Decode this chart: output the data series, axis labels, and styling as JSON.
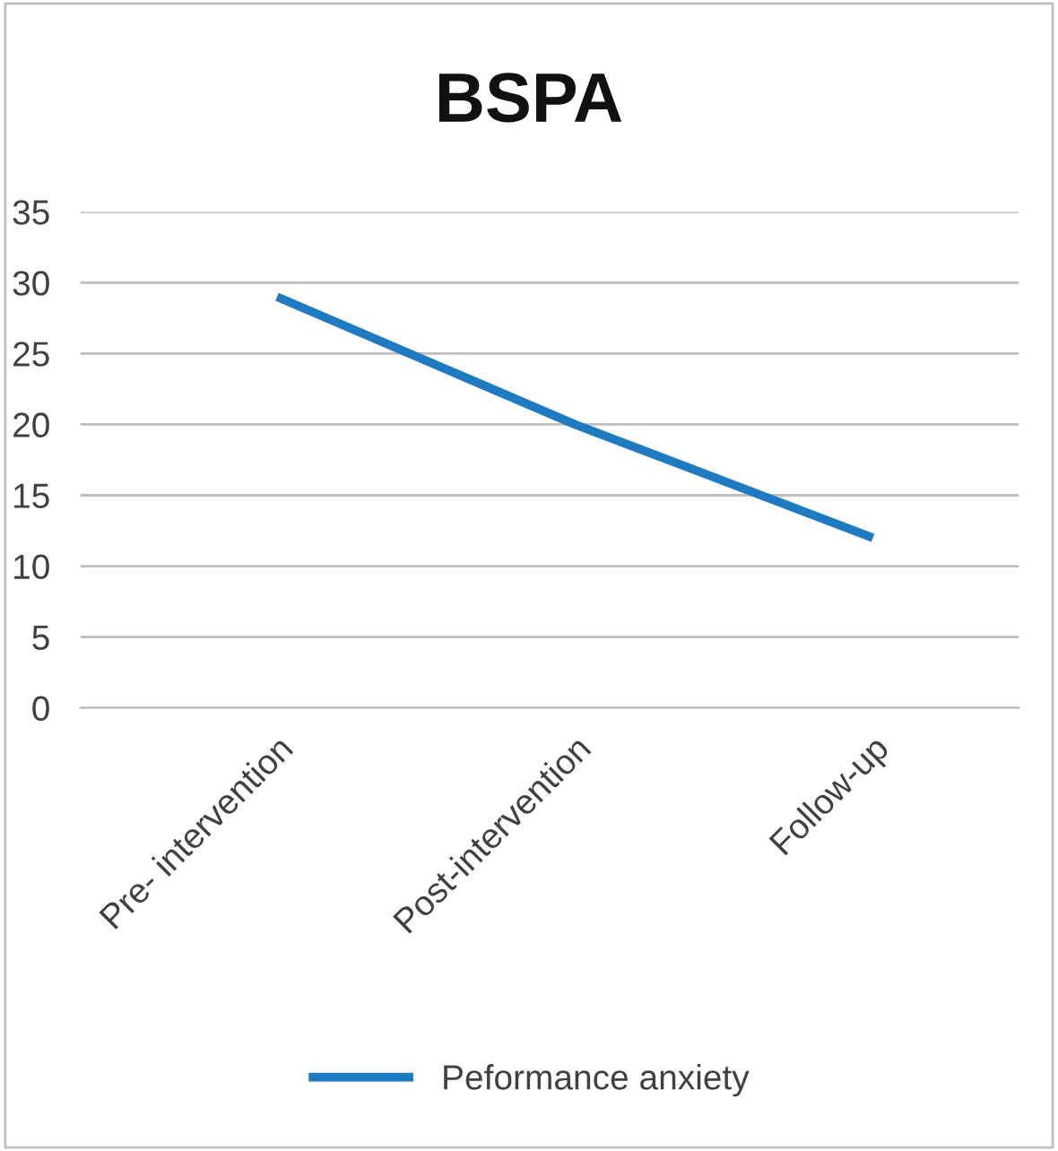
{
  "chart_data": {
    "type": "line",
    "title": "BSPA",
    "categories": [
      "Pre- intervention",
      "Post-intervention",
      "Follow-up"
    ],
    "series": [
      {
        "name": "Peformance anxiety",
        "color": "#1f7bc1",
        "values": [
          29,
          20,
          12
        ]
      }
    ],
    "ylim": [
      0,
      35
    ],
    "yticks": [
      0,
      5,
      10,
      15,
      20,
      25,
      30,
      35
    ],
    "grid": "y",
    "legend": "bottom",
    "marker": "none",
    "line_style": "solid"
  }
}
